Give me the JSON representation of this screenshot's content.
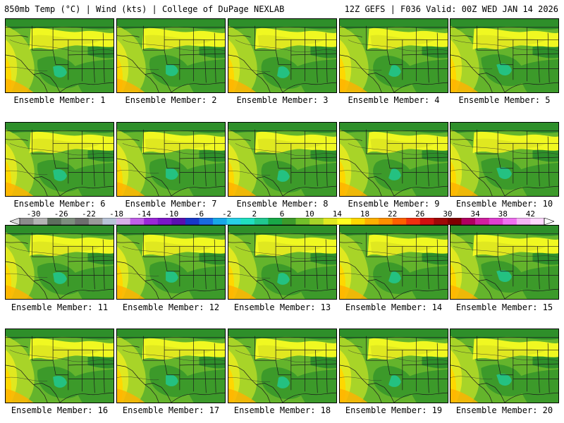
{
  "header": {
    "left": "850mb Temp (°C) | Wind (kts) | College of DuPage NEXLAB",
    "right": "12Z GEFS | F036 Valid: 00Z WED JAN 14 2026"
  },
  "members": [
    {
      "label": "Ensemble Member: 1"
    },
    {
      "label": "Ensemble Member: 2"
    },
    {
      "label": "Ensemble Member: 3"
    },
    {
      "label": "Ensemble Member: 4"
    },
    {
      "label": "Ensemble Member: 5"
    },
    {
      "label": "Ensemble Member: 6"
    },
    {
      "label": "Ensemble Member: 7"
    },
    {
      "label": "Ensemble Member: 8"
    },
    {
      "label": "Ensemble Member: 9"
    },
    {
      "label": "Ensemble Member: 10"
    },
    {
      "label": "Ensemble Member: 11"
    },
    {
      "label": "Ensemble Member: 12"
    },
    {
      "label": "Ensemble Member: 13"
    },
    {
      "label": "Ensemble Member: 14"
    },
    {
      "label": "Ensemble Member: 15"
    },
    {
      "label": "Ensemble Member: 16"
    },
    {
      "label": "Ensemble Member: 17"
    },
    {
      "label": "Ensemble Member: 18"
    },
    {
      "label": "Ensemble Member: 19"
    },
    {
      "label": "Ensemble Member: 20"
    }
  ],
  "colorbar": {
    "unit": "°C",
    "ticks": [
      "-30",
      "-26",
      "-22",
      "-18",
      "-14",
      "-10",
      "-6",
      "-2",
      "2",
      "6",
      "10",
      "14",
      "18",
      "22",
      "26",
      "30",
      "34",
      "38",
      "42"
    ],
    "colors": [
      "#8c8c8c",
      "#b4b4b4",
      "#5e6e5e",
      "#7e8e7e",
      "#6e6e6e",
      "#9a9a9a",
      "#b8c4d8",
      "#d8b0e8",
      "#c060e8",
      "#9a28d8",
      "#7a18c8",
      "#5a10b0",
      "#1838c8",
      "#1a6ae0",
      "#18a8e8",
      "#28d0e8",
      "#20e0c0",
      "#20c890",
      "#18a848",
      "#3c9a2a",
      "#72c02a",
      "#a8d428",
      "#e0e820",
      "#ffff20",
      "#ffd800",
      "#ffb000",
      "#ff9000",
      "#ff6000",
      "#f03010",
      "#d01010",
      "#a00808",
      "#800000",
      "#b00060",
      "#d020a0",
      "#e040d0",
      "#f070f0",
      "#f4b4f4",
      "#ffd8ff"
    ]
  }
}
